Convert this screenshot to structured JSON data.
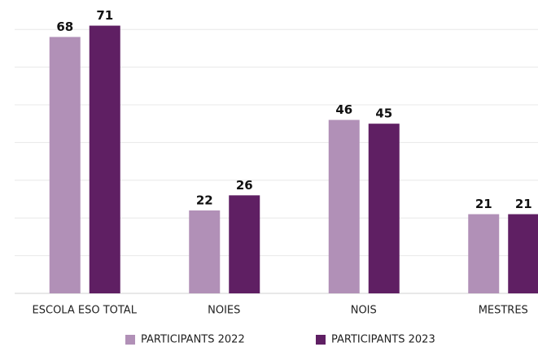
{
  "chart_data": {
    "type": "bar",
    "categories": [
      "ESCOLA ESO TOTAL",
      "NOIES",
      "NOIS",
      "MESTRES"
    ],
    "series": [
      {
        "name": "PARTICIPANTS 2022",
        "color": "#b190b7",
        "values": [
          68,
          22,
          46,
          21
        ]
      },
      {
        "name": "PARTICIPANTS 2023",
        "color": "#5f1f63",
        "values": [
          71,
          26,
          45,
          21
        ]
      }
    ],
    "ylim": [
      0,
      75
    ],
    "yticks": [
      0,
      10,
      20,
      30,
      40,
      50,
      60,
      70
    ],
    "grid": true,
    "legend": "bottom"
  }
}
